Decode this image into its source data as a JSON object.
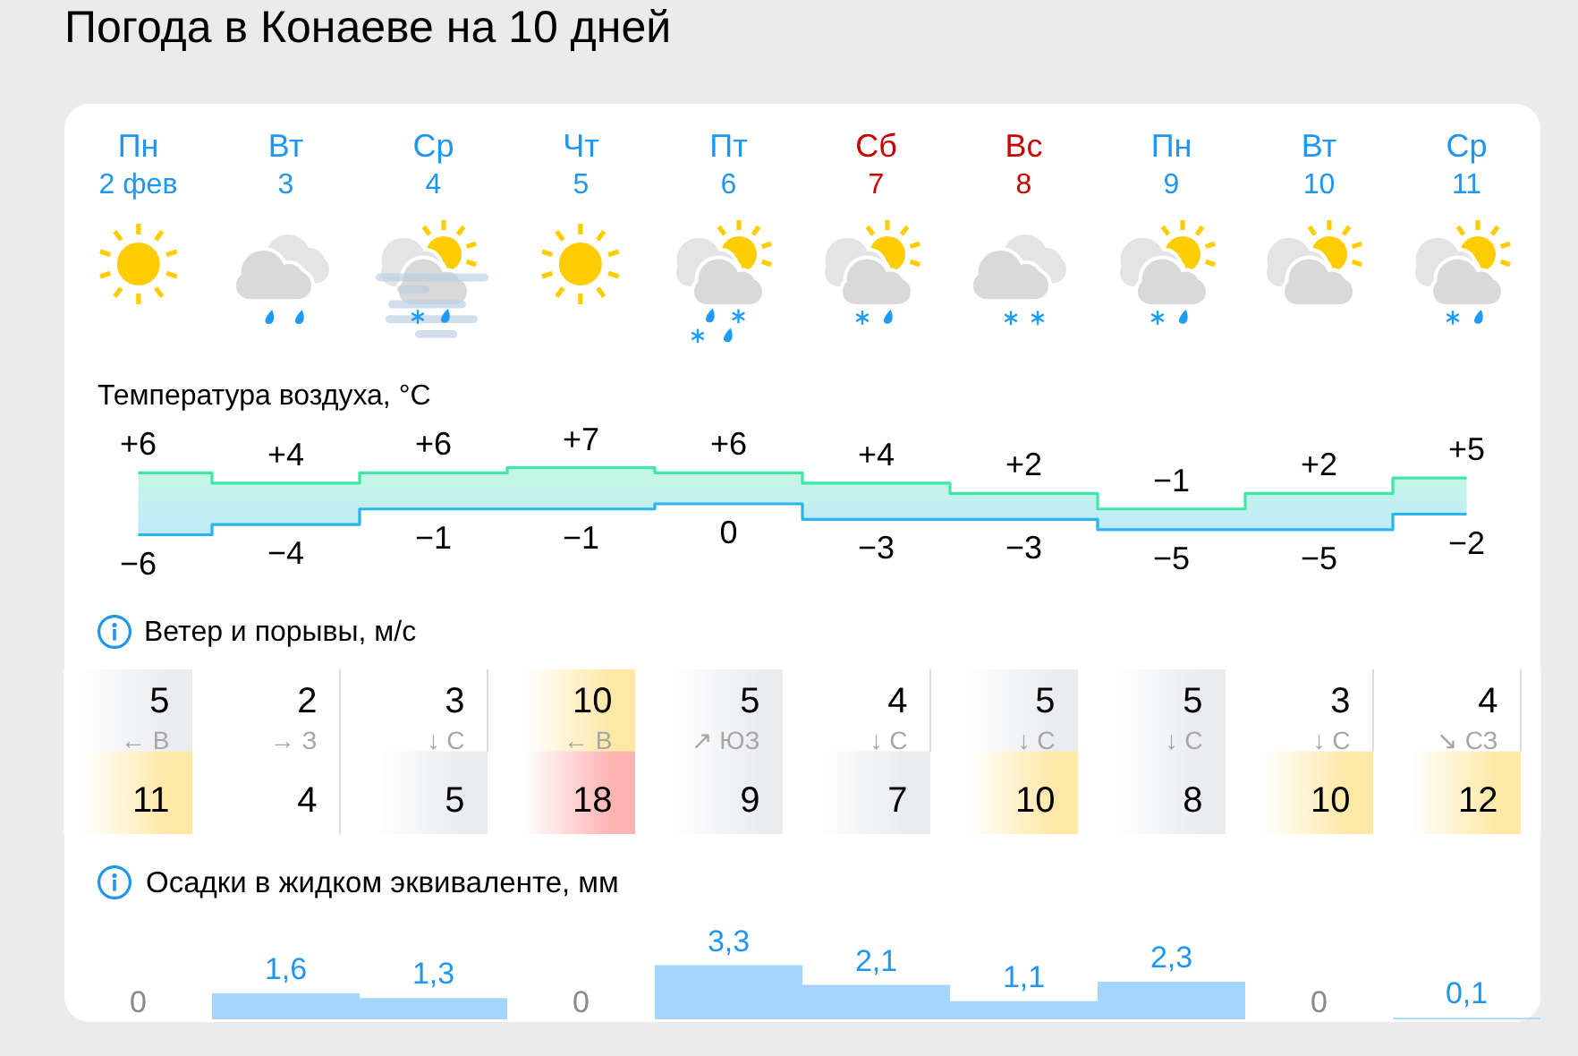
{
  "chart_data": [
    {
      "type": "step",
      "title": "Погода в Конаеве на 10 дней",
      "subtitle": "Температура воздуха, °C",
      "categories": [
        "Пн\n2 фев",
        "Вт\n3",
        "Ср\n4",
        "Чт\n5",
        "Пт\n6",
        "Сб\n7",
        "Вс\n8",
        "Пн\n9",
        "Вт\n10",
        "Ср\n11"
      ],
      "tick_labels": "x",
      "series": [
        {
          "color": "#3de8a4",
          "values": [
            6,
            4,
            6,
            7,
            6,
            4,
            2,
            -1,
            2,
            5
          ],
          "value_labels": [
            "+6",
            "+4",
            "+6",
            "+7",
            "+6",
            "+4",
            "+2",
            "−1",
            "+2",
            "+5"
          ],
          "upper": [
            6,
            4,
            6,
            7,
            6,
            4,
            2,
            -1,
            2,
            5
          ],
          "lower": [
            -6,
            -4,
            -1,
            -1,
            0,
            -3,
            -3,
            -5,
            -5,
            -2
          ]
        },
        {
          "color": "#2bb5f0",
          "values": [
            -6,
            -4,
            -1,
            -1,
            0,
            -3,
            -3,
            -5,
            -5,
            -2
          ],
          "value_labels": [
            "−6",
            "−4",
            "−1",
            "−1",
            "0",
            "−3",
            "−3",
            "−5",
            "−5",
            "−2"
          ]
        }
      ]
    },
    {
      "type": "heatmap",
      "title": "Ветер и порывы, м/с",
      "categories": [
        null,
        null,
        null,
        null,
        null,
        null,
        null,
        null,
        null,
        null
      ],
      "y_categories": [
        null,
        null
      ],
      "tick_labels": false,
      "cells": [
        [
          5,
          2,
          3,
          10,
          5,
          4,
          5,
          5,
          3,
          4
        ],
        [
          11,
          4,
          5,
          18,
          9,
          7,
          10,
          8,
          10,
          12
        ]
      ],
      "cell_labels": [
        [
          "5\n← В",
          "2\n→ З",
          "3\n↓ С",
          "10\n← В",
          "5\n↗ ЮЗ",
          "4\n↓ С",
          "5\n↓ С",
          "5\n↓ С",
          "3\n↓ С",
          "4\n↘ СЗ"
        ],
        [
          "11",
          "4",
          "5",
          "18",
          "9",
          "7",
          "10",
          "8",
          "10",
          "12"
        ]
      ]
    },
    {
      "type": "bar",
      "title": "Осадки в жидком эквиваленте, мм",
      "categories": [
        null,
        null,
        null,
        null,
        null,
        null,
        null,
        null,
        null,
        null
      ],
      "tick_labels": false,
      "color": "#a6d5fb",
      "values": [
        0,
        1.6,
        1.3,
        0,
        3.3,
        2.1,
        1.1,
        2.3,
        0,
        0.1
      ],
      "value_labels": [
        "0",
        "1,6",
        "1,3",
        "0",
        "3,3",
        "2,1",
        "1,1",
        "2,3",
        "0",
        "0,1"
      ]
    }
  ]
}
